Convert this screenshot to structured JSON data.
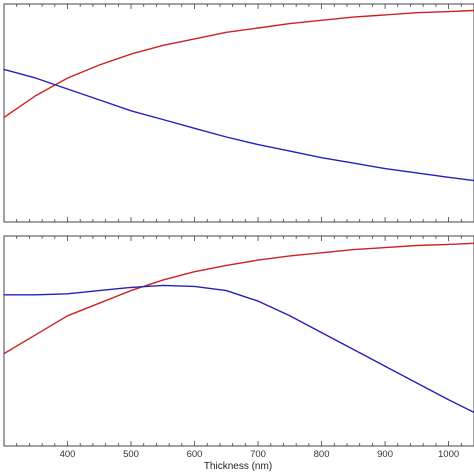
{
  "chart_data": [
    {
      "type": "line",
      "panel": "top",
      "title": "",
      "xlabel": "",
      "ylabel": "",
      "xlim": [
        300,
        1040
      ],
      "ylim": [
        0,
        1
      ],
      "grid": false,
      "series": [
        {
          "color": "#cc2222",
          "x": [
            300,
            350,
            400,
            450,
            500,
            550,
            600,
            650,
            700,
            750,
            800,
            850,
            900,
            950,
            1000,
            1040
          ],
          "y": [
            0.48,
            0.58,
            0.66,
            0.72,
            0.77,
            0.81,
            0.84,
            0.87,
            0.89,
            0.91,
            0.925,
            0.94,
            0.95,
            0.96,
            0.965,
            0.97
          ]
        },
        {
          "color": "#2222bb",
          "x": [
            300,
            350,
            400,
            450,
            500,
            550,
            600,
            650,
            700,
            750,
            800,
            850,
            900,
            950,
            1000,
            1040
          ],
          "y": [
            0.7,
            0.66,
            0.61,
            0.56,
            0.51,
            0.47,
            0.43,
            0.39,
            0.355,
            0.325,
            0.295,
            0.27,
            0.245,
            0.225,
            0.205,
            0.19
          ]
        }
      ]
    },
    {
      "type": "line",
      "panel": "bottom",
      "title": "",
      "xlabel": "Thickness (nm)",
      "ylabel": "",
      "xlim": [
        300,
        1040
      ],
      "ylim": [
        0,
        1
      ],
      "grid": false,
      "x_ticks": [
        400,
        500,
        600,
        700,
        800,
        900,
        1000
      ],
      "series": [
        {
          "color": "#cc2222",
          "x": [
            300,
            350,
            400,
            450,
            500,
            550,
            600,
            650,
            700,
            750,
            800,
            850,
            900,
            950,
            1000,
            1040
          ],
          "y": [
            0.44,
            0.53,
            0.62,
            0.68,
            0.74,
            0.79,
            0.83,
            0.86,
            0.885,
            0.905,
            0.92,
            0.935,
            0.945,
            0.955,
            0.96,
            0.965
          ]
        },
        {
          "color": "#2222bb",
          "x": [
            300,
            350,
            400,
            450,
            500,
            550,
            600,
            650,
            700,
            750,
            800,
            850,
            900,
            950,
            1000,
            1040
          ],
          "y": [
            0.72,
            0.72,
            0.725,
            0.74,
            0.755,
            0.765,
            0.76,
            0.74,
            0.69,
            0.62,
            0.54,
            0.46,
            0.38,
            0.3,
            0.22,
            0.16
          ]
        }
      ]
    }
  ]
}
